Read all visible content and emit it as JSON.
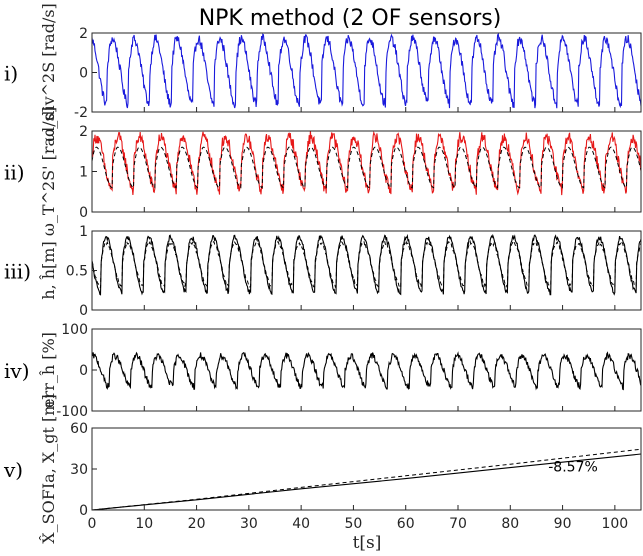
{
  "chart_data": {
    "title": "NPK method (2 OF sensors)",
    "xlabel": "t[s]",
    "xlim": [
      0,
      105
    ],
    "xticks": [
      0,
      10,
      20,
      30,
      40,
      50,
      60,
      70,
      80,
      90,
      100
    ],
    "panels": [
      {
        "tag": "i)",
        "ylabel": "ω_div^2S [rad/s]",
        "type": "line",
        "ylim": [
          -2,
          2
        ],
        "yticks": [
          -2,
          0,
          2
        ],
        "period_s": 4.1,
        "series": [
          {
            "name": "",
            "color": "#1a1adc",
            "style": "solid",
            "wave": {
              "min": -1.6,
              "max": 1.7,
              "phase": 0.3,
              "noise": 0.25
            }
          }
        ]
      },
      {
        "tag": "ii)",
        "ylabel": "ω_T^2S' [rad/s]",
        "type": "line",
        "ylim": [
          0,
          2
        ],
        "yticks": [
          0,
          1,
          2
        ],
        "period_s": 4.1,
        "series": [
          {
            "name": "",
            "color": "#e61919",
            "style": "solid",
            "wave": {
              "min": 0.55,
              "max": 1.85,
              "phase": 0.05,
              "noise": 0.15
            }
          },
          {
            "name": "",
            "color": "#000000",
            "style": "dashed",
            "wave": {
              "min": 0.6,
              "max": 1.6,
              "phase": 0.05,
              "noise": 0.0
            }
          }
        ]
      },
      {
        "tag": "iii)",
        "ylabel": "h, ĥ[m]",
        "type": "line",
        "ylim": [
          0,
          1
        ],
        "yticks": [
          0,
          0.5,
          1
        ],
        "period_s": 4.1,
        "series": [
          {
            "name": "",
            "color": "#000000",
            "style": "solid",
            "wave": {
              "min": 0.22,
              "max": 0.92,
              "phase": 0.6,
              "noise": 0.03
            }
          },
          {
            "name": "",
            "color": "#000000",
            "style": "dashed",
            "wave": {
              "min": 0.3,
              "max": 0.85,
              "phase": 0.6,
              "noise": 0.02
            }
          }
        ]
      },
      {
        "tag": "iv)",
        "ylabel": "err_ĥ [%]",
        "type": "line",
        "ylim": [
          -100,
          100
        ],
        "yticks": [
          -100,
          0,
          100
        ],
        "period_s": 4.1,
        "series": [
          {
            "name": "",
            "color": "#000000",
            "style": "solid",
            "wave": {
              "min": -40,
              "max": 35,
              "phase": 0.2,
              "noise": 8
            }
          }
        ]
      },
      {
        "tag": "v)",
        "ylabel": "X̂_SOFIa, X_gt [m]",
        "type": "line",
        "ylim": [
          0,
          60
        ],
        "yticks": [
          0,
          30,
          60
        ],
        "series": [
          {
            "name": "",
            "color": "#000000",
            "style": "solid",
            "x": [
              0,
              20,
              40,
              60,
              80,
              105
            ],
            "y": [
              0,
              7.5,
              15.5,
              23,
              31,
              41
            ]
          },
          {
            "name": "",
            "color": "#000000",
            "style": "dashed",
            "x": [
              0,
              20,
              40,
              60,
              80,
              105
            ],
            "y": [
              0,
              7.8,
              16.5,
              25,
              33.5,
              44.5
            ]
          }
        ],
        "annotation": {
          "text": "-8.57%",
          "x": 92,
          "y": 32
        }
      }
    ]
  }
}
